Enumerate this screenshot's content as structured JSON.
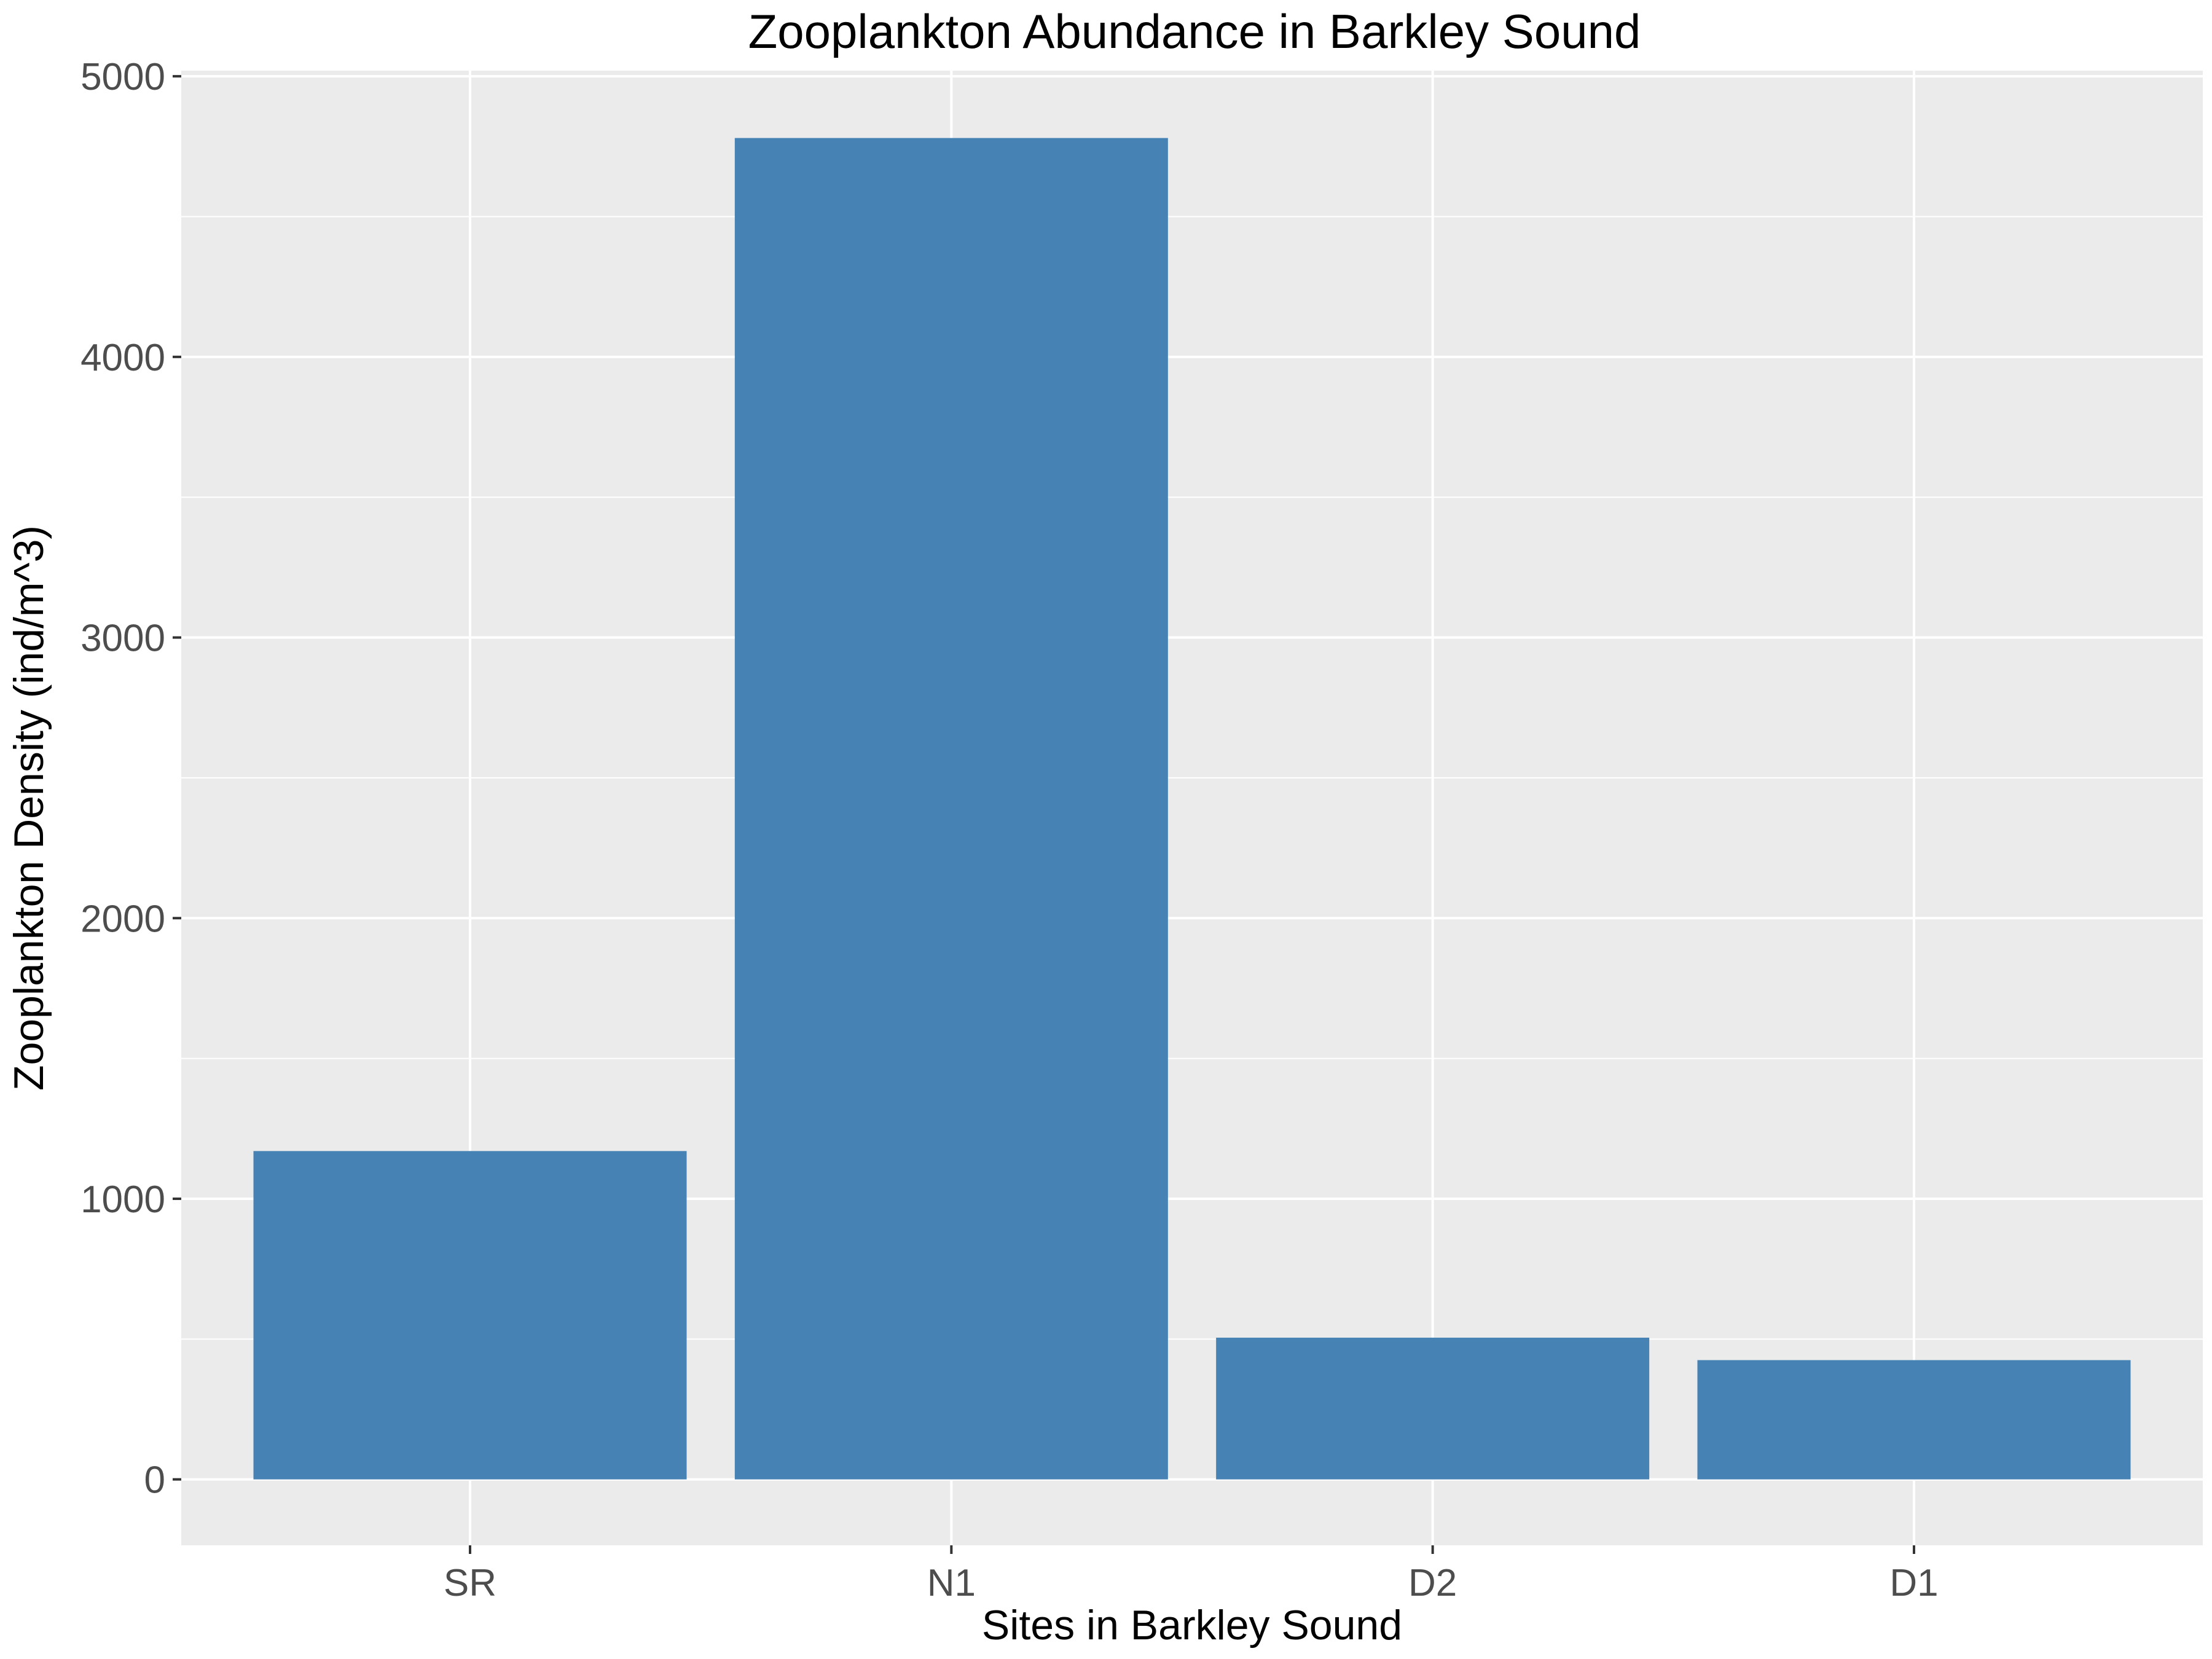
{
  "chart_data": {
    "type": "bar",
    "title": "Zooplankton Abundance in Barkley Sound",
    "xlabel": "Sites in Barkley Sound",
    "ylabel": "Zooplankton Density (ind/m^3)",
    "categories": [
      "SR",
      "N1",
      "D2",
      "D1"
    ],
    "values": [
      1170,
      4780,
      505,
      425
    ],
    "ylim": [
      -235,
      5020
    ],
    "yticks": [
      0,
      1000,
      2000,
      3000,
      4000,
      5000
    ],
    "grid": true,
    "bar_color": "#4682b4",
    "panel_color": "#ebebeb",
    "grid_color": "#ffffff",
    "tick_label_color": "#4d4d4d"
  }
}
